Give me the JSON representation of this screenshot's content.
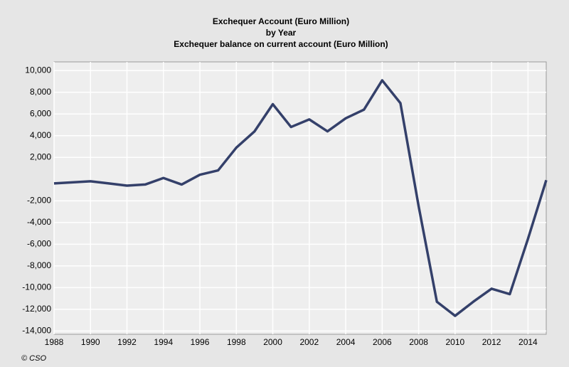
{
  "chart_data": {
    "type": "line",
    "title": "Exchequer  Account (Euro Million)",
    "subtitle": "by Year",
    "title2": "Exchequer balance on current account (Euro Million)",
    "source": "© CSO",
    "x": [
      1988,
      1989,
      1990,
      1991,
      1992,
      1993,
      1994,
      1995,
      1996,
      1997,
      1998,
      1999,
      2000,
      2001,
      2002,
      2003,
      2004,
      2005,
      2006,
      2007,
      2008,
      2009,
      2010,
      2011,
      2012,
      2013,
      2014,
      2015
    ],
    "series": [
      {
        "name": "Exchequer balance on current account (Euro Million)",
        "color": "#34406a",
        "values": [
          -400,
          -300,
          -200,
          -400,
          -600,
          -500,
          100,
          -500,
          400,
          800,
          2900,
          4400,
          6900,
          4800,
          5500,
          4400,
          5600,
          6400,
          9100,
          7000,
          -2500,
          -11300,
          -12600,
          -11300,
          -10100,
          -10600,
          -5500,
          -100
        ]
      }
    ],
    "xlim": [
      1988,
      2015
    ],
    "xticks": [
      1988,
      1990,
      1992,
      1994,
      1996,
      1998,
      2000,
      2002,
      2004,
      2006,
      2008,
      2010,
      2012,
      2014
    ],
    "ylim": [
      -14300,
      10800
    ],
    "yticks": [
      {
        "value": 10000,
        "label": "10,000"
      },
      {
        "value": 8000,
        "label": "8,000"
      },
      {
        "value": 6000,
        "label": "6,000"
      },
      {
        "value": 4000,
        "label": "4,000"
      },
      {
        "value": 2000,
        "label": "2,000"
      },
      {
        "value": -2000,
        "label": "-2,000"
      },
      {
        "value": -4000,
        "label": "-4,000"
      },
      {
        "value": -6000,
        "label": "-6,000"
      },
      {
        "value": -8000,
        "label": "-8,000"
      },
      {
        "value": -10000,
        "label": "-10,000"
      },
      {
        "value": -12000,
        "label": "-12,000"
      },
      {
        "value": -14000,
        "label": "-14,000"
      }
    ],
    "grid": true
  }
}
